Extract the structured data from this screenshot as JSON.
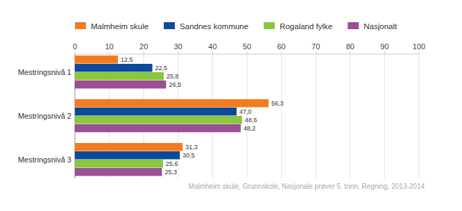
{
  "chart_data": {
    "type": "bar",
    "orientation": "horizontal",
    "categories": [
      "Mestringsnivå 1",
      "Mestringsnivå 2",
      "Mestringsnivå 3"
    ],
    "series": [
      {
        "name": "Malmheim skule",
        "color": "#f47b20",
        "values": [
          12.5,
          56.3,
          31.3
        ],
        "value_labels": [
          "12,5",
          "56,3",
          "31,3"
        ]
      },
      {
        "name": "Sandnes kommune",
        "color": "#0c4a99",
        "values": [
          22.5,
          47.0,
          30.5
        ],
        "value_labels": [
          "22,5",
          "47,0",
          "30,5"
        ]
      },
      {
        "name": "Rogaland fylke",
        "color": "#8cc63f",
        "values": [
          25.8,
          48.6,
          25.6
        ],
        "value_labels": [
          "25,8",
          "48,6",
          "25,6"
        ]
      },
      {
        "name": "Nasjonalt",
        "color": "#9b4f96",
        "values": [
          26.5,
          48.2,
          25.3
        ],
        "value_labels": [
          "26,5",
          "48,2",
          "25,3"
        ]
      }
    ],
    "xlim": [
      0,
      100
    ],
    "xticks": [
      0,
      10,
      20,
      30,
      40,
      50,
      60,
      70,
      80,
      90,
      100
    ],
    "grid": true,
    "legend": "top",
    "data_labels": true,
    "caption": "Malmheim skule, Grunnskole, Nasjonale prøver 5. trinn, Regning, 2013-2014"
  }
}
